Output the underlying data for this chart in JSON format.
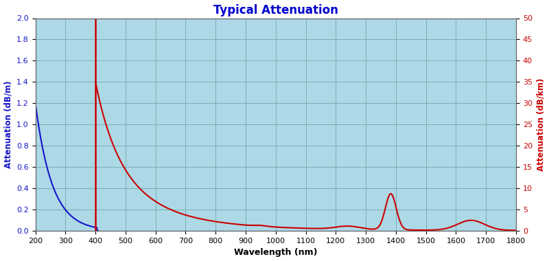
{
  "title": "Typical Attenuation",
  "title_color": "#0000CC",
  "title_fontsize": 12,
  "xlabel": "Wavelength (nm)",
  "ylabel_left": "Attenuation (dB/m)",
  "ylabel_right": "Attenuation (dB/km)",
  "xlim": [
    200,
    1800
  ],
  "ylim_left": [
    0,
    2.0
  ],
  "ylim_right": [
    0,
    50
  ],
  "xticks": [
    200,
    300,
    400,
    500,
    600,
    700,
    800,
    900,
    1000,
    1100,
    1200,
    1300,
    1400,
    1500,
    1600,
    1700,
    1800
  ],
  "yticks_left": [
    0,
    0.2,
    0.4,
    0.6,
    0.8,
    1.0,
    1.2,
    1.4,
    1.6,
    1.8,
    2.0
  ],
  "yticks_right": [
    0,
    5,
    10,
    15,
    20,
    25,
    30,
    35,
    40,
    45,
    50
  ],
  "plot_background": "#ADD8E6",
  "fig_background": "#FFFFFF",
  "blue_line_color": "#1515CC",
  "red_line_color": "#CC0000",
  "grid_color": "#5F9EA0",
  "label_color_left": "#1515CC",
  "label_color_right": "#CC0000"
}
